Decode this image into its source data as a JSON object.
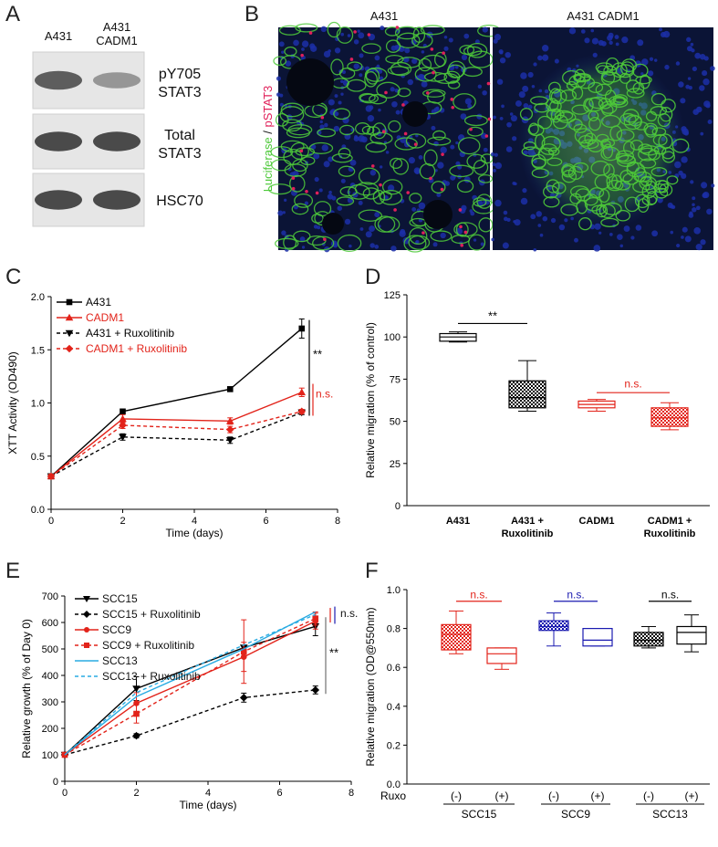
{
  "panels": {
    "A": "A",
    "B": "B",
    "C": "C",
    "D": "D",
    "E": "E",
    "F": "F"
  },
  "western_blot": {
    "lanes": [
      "A431",
      "A431\nCADM1"
    ],
    "rows": [
      {
        "label": "pY705\nSTAT3",
        "intensities": [
          0.85,
          0.55
        ]
      },
      {
        "label": "Total\nSTAT3",
        "intensities": [
          0.95,
          0.95
        ]
      },
      {
        "label": "HSC70",
        "intensities": [
          0.95,
          0.95
        ]
      }
    ]
  },
  "microscopy": {
    "titles": [
      "A431",
      "A431 CADM1"
    ],
    "stain_label_green": "Luciferase",
    "stain_sep": " / ",
    "stain_label_red": "pSTAT3",
    "colors": {
      "green": "#4ec93a",
      "red": "#e0205a",
      "blue": "#1c2fa8"
    }
  },
  "chart_data": [
    {
      "id": "C",
      "type": "line",
      "xlabel": "Time (days)",
      "ylabel": "XTT Activity (OD490)",
      "xlim": [
        0,
        8
      ],
      "ylim": [
        0,
        2.0
      ],
      "xticks": [
        "0",
        "2",
        "4",
        "6",
        "8"
      ],
      "yticks": [
        "0.0",
        "0.5",
        "1.0",
        "1.5",
        "2.0"
      ],
      "legend": "top-left",
      "series": [
        {
          "name": "A431",
          "color": "#000000",
          "dash": false,
          "marker": "square",
          "x": [
            0,
            2,
            5,
            7
          ],
          "y": [
            0.31,
            0.92,
            1.13,
            1.7
          ],
          "err": [
            0.02,
            0.02,
            0.02,
            0.09
          ]
        },
        {
          "name": "CADM1",
          "color": "#e2231a",
          "dash": false,
          "marker": "triangle",
          "x": [
            0,
            2,
            5,
            7
          ],
          "y": [
            0.31,
            0.85,
            0.83,
            1.1
          ],
          "err": [
            0.02,
            0.04,
            0.03,
            0.04
          ]
        },
        {
          "name": "A431 + Ruxolitinib",
          "color": "#000000",
          "dash": true,
          "marker": "triangle-down",
          "x": [
            0,
            2,
            5,
            7
          ],
          "y": [
            0.31,
            0.68,
            0.65,
            0.91
          ],
          "err": [
            0.02,
            0.03,
            0.03,
            0.02
          ]
        },
        {
          "name": "CADM1 + Ruxolitinib",
          "color": "#e2231a",
          "dash": true,
          "marker": "diamond",
          "x": [
            0,
            2,
            5,
            7
          ],
          "y": [
            0.31,
            0.79,
            0.75,
            0.92
          ],
          "err": [
            0.02,
            0.03,
            0.03,
            0.02
          ]
        }
      ],
      "annotations": [
        "**",
        "n.s."
      ]
    },
    {
      "id": "D",
      "type": "box",
      "ylabel": "Relative migration (% of control)",
      "ylim": [
        0,
        125
      ],
      "yticks": [
        "0",
        "25",
        "50",
        "75",
        "100",
        "125"
      ],
      "categories": [
        "A431",
        "A431 +\nRuxolitinib",
        "CADM1",
        "CADM1 +\nRuxolitinib"
      ],
      "boxes": [
        {
          "min": 97,
          "q1": 97.5,
          "median": 100,
          "q3": 102,
          "max": 103,
          "color": "#000000",
          "fill": "none"
        },
        {
          "min": 56,
          "q1": 58,
          "median": 64,
          "q3": 74,
          "max": 86,
          "color": "#000000",
          "fill": "check"
        },
        {
          "min": 56,
          "q1": 58,
          "median": 60,
          "q3": 62,
          "max": 63,
          "color": "#e2231a",
          "fill": "none"
        },
        {
          "min": 45,
          "q1": 47,
          "median": 52,
          "q3": 58,
          "max": 61,
          "color": "#e2231a",
          "fill": "check"
        }
      ],
      "annotations": [
        "**",
        "n.s."
      ]
    },
    {
      "id": "E",
      "type": "line",
      "xlabel": "Time (days)",
      "ylabel": "Relative growth (% of Day 0)",
      "xlim": [
        0,
        8
      ],
      "ylim": [
        0,
        700
      ],
      "xticks": [
        "0",
        "2",
        "4",
        "6",
        "8"
      ],
      "yticks": [
        "0",
        "100",
        "200",
        "300",
        "400",
        "500",
        "600",
        "700"
      ],
      "legend": "top-left",
      "series": [
        {
          "name": "SCC15",
          "color": "#000000",
          "dash": false,
          "marker": "triangle-down",
          "x": [
            0,
            2,
            5,
            7
          ],
          "y": [
            100,
            350,
            505,
            585
          ],
          "err": [
            0,
            45,
            0,
            35
          ]
        },
        {
          "name": "SCC15 + Ruxolitinib",
          "color": "#000000",
          "dash": true,
          "marker": "diamond",
          "x": [
            0,
            2,
            5,
            7
          ],
          "y": [
            100,
            172,
            316,
            345
          ],
          "err": [
            0,
            8,
            17,
            15
          ]
        },
        {
          "name": "SCC9",
          "color": "#e2231a",
          "dash": false,
          "marker": "circle",
          "x": [
            0,
            2,
            5,
            7
          ],
          "y": [
            100,
            295,
            470,
            605
          ],
          "err": [
            0,
            40,
            55,
            30
          ]
        },
        {
          "name": "SCC9 + Ruxolitinib",
          "color": "#e2231a",
          "dash": true,
          "marker": "square",
          "x": [
            0,
            2,
            5,
            7
          ],
          "y": [
            100,
            255,
            490,
            615
          ],
          "err": [
            0,
            35,
            120,
            25
          ]
        },
        {
          "name": "SCC13",
          "color": "#29abe2",
          "dash": false,
          "marker": "none",
          "x": [
            0,
            2,
            5,
            7
          ],
          "y": [
            100,
            320,
            500,
            640
          ],
          "err": [
            0,
            0,
            0,
            0
          ]
        },
        {
          "name": "SCC13 + Ruxolitinib",
          "color": "#29abe2",
          "dash": true,
          "marker": "none",
          "x": [
            0,
            2,
            5,
            7
          ],
          "y": [
            100,
            335,
            515,
            630
          ],
          "err": [
            0,
            0,
            0,
            0
          ]
        }
      ],
      "annotations": [
        "n.s.",
        "**"
      ]
    },
    {
      "id": "F",
      "type": "box",
      "ylabel": "Relative migration (OD@550nm)",
      "ylim": [
        0,
        1.0
      ],
      "yticks": [
        "0.0",
        "0.2",
        "0.4",
        "0.6",
        "0.8",
        "1.0"
      ],
      "ruxo_label": "Ruxo",
      "tick_labels": [
        "(-)",
        "(+)",
        "(-)",
        "(+)",
        "(-)",
        "(+)"
      ],
      "groups": [
        "SCC15",
        "SCC9",
        "SCC13"
      ],
      "boxes": [
        {
          "min": 0.67,
          "q1": 0.69,
          "median": 0.77,
          "q3": 0.82,
          "max": 0.89,
          "color": "#e2231a",
          "fill": "check"
        },
        {
          "min": 0.59,
          "q1": 0.62,
          "median": 0.67,
          "q3": 0.7,
          "max": 0.7,
          "color": "#e2231a",
          "fill": "none"
        },
        {
          "min": 0.71,
          "q1": 0.79,
          "median": 0.81,
          "q3": 0.84,
          "max": 0.88,
          "color": "#1a1ab0",
          "fill": "check"
        },
        {
          "min": 0.71,
          "q1": 0.71,
          "median": 0.74,
          "q3": 0.8,
          "max": 0.8,
          "color": "#1a1ab0",
          "fill": "none"
        },
        {
          "min": 0.7,
          "q1": 0.71,
          "median": 0.74,
          "q3": 0.78,
          "max": 0.81,
          "color": "#000000",
          "fill": "check"
        },
        {
          "min": 0.68,
          "q1": 0.72,
          "median": 0.78,
          "q3": 0.81,
          "max": 0.87,
          "color": "#000000",
          "fill": "none"
        }
      ],
      "annotations": [
        "n.s.",
        "n.s.",
        "n.s."
      ]
    }
  ]
}
